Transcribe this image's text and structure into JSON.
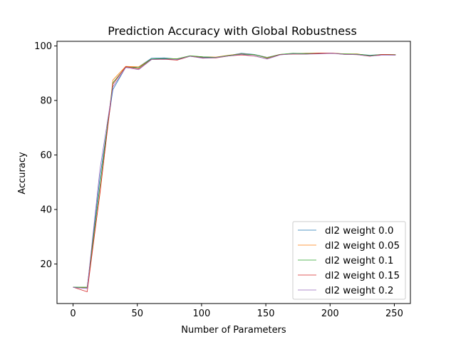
{
  "chart_data": {
    "type": "line",
    "title": "Prediction Accuracy with Global Robustness",
    "xlabel": "Number of Parameters",
    "ylabel": "Accuracy",
    "xlim": [
      -12.5,
      262.5
    ],
    "ylim": [
      5.5,
      101.7
    ],
    "xticks": [
      0,
      50,
      100,
      150,
      200,
      250
    ],
    "yticks": [
      20,
      40,
      60,
      80,
      100
    ],
    "grid": false,
    "legend_position": "lower-right",
    "x": [
      0,
      11,
      21,
      31,
      41,
      51,
      61,
      71,
      81,
      91,
      101,
      111,
      121,
      131,
      141,
      151,
      161,
      171,
      181,
      191,
      201,
      211,
      221,
      231,
      241,
      251
    ],
    "series": [
      {
        "name": "dl2 weight 0.0",
        "color": "#1f77b4",
        "values": [
          11.5,
          11.3,
          52.0,
          84.0,
          92.2,
          92.3,
          95.5,
          95.6,
          95.2,
          96.3,
          95.8,
          95.8,
          96.5,
          97.3,
          96.9,
          95.8,
          96.9,
          97.1,
          97.3,
          97.2,
          97.4,
          97.0,
          97.0,
          96.6,
          96.9,
          96.8
        ]
      },
      {
        "name": "dl2 weight 0.05",
        "color": "#ff7f0e",
        "values": [
          11.4,
          11.4,
          46.0,
          87.5,
          92.5,
          92.3,
          95.2,
          95.3,
          95.3,
          96.3,
          96.0,
          95.9,
          96.6,
          97.1,
          96.8,
          95.7,
          96.9,
          97.2,
          97.3,
          97.4,
          97.4,
          97.1,
          97.1,
          96.4,
          96.9,
          96.8
        ]
      },
      {
        "name": "dl2 weight 0.1",
        "color": "#2ca02c",
        "values": [
          11.5,
          11.5,
          49.0,
          86.5,
          92.3,
          92.0,
          95.2,
          95.4,
          95.3,
          96.4,
          96.0,
          95.8,
          96.5,
          97.0,
          96.8,
          95.6,
          96.9,
          97.3,
          97.2,
          97.3,
          97.3,
          97.1,
          97.0,
          96.5,
          96.9,
          96.8
        ]
      },
      {
        "name": "dl2 weight 0.15",
        "color": "#d62728",
        "values": [
          11.5,
          9.8,
          46.5,
          86.0,
          92.4,
          91.6,
          95.0,
          95.1,
          94.8,
          96.2,
          95.6,
          95.6,
          96.3,
          96.7,
          96.3,
          95.3,
          96.8,
          97.0,
          97.0,
          97.3,
          97.4,
          96.9,
          96.8,
          96.2,
          96.9,
          96.7
        ]
      },
      {
        "name": "dl2 weight 0.2",
        "color": "#9467bd",
        "values": [
          11.4,
          11.0,
          55.0,
          85.0,
          92.1,
          91.3,
          95.0,
          95.2,
          95.0,
          96.2,
          95.5,
          95.7,
          96.3,
          96.9,
          96.4,
          95.2,
          96.7,
          97.1,
          97.0,
          97.1,
          97.3,
          96.9,
          96.8,
          96.3,
          96.6,
          96.6
        ]
      }
    ]
  }
}
